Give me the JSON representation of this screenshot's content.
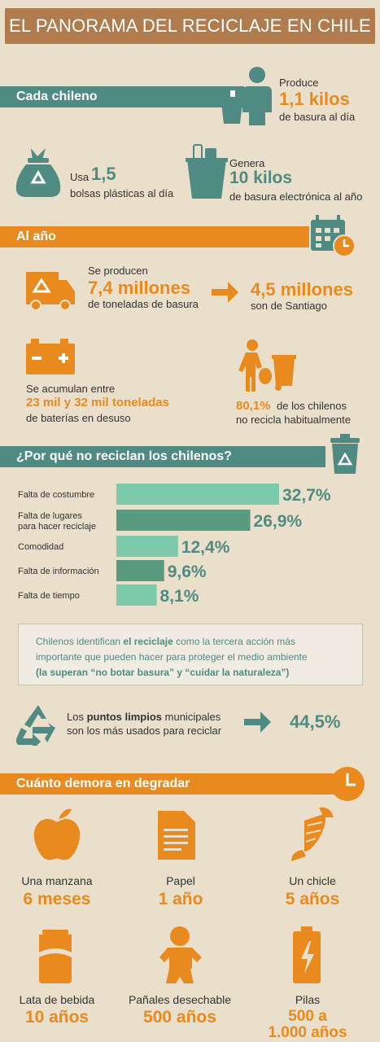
{
  "title": "EL PANORAMA DEL RECICLAJE EN CHILE",
  "section_cada_chileno": {
    "heading": "Cada chileno",
    "produce_label": "Produce",
    "produce_value": "1,1 kilos",
    "produce_desc": "de basura al día",
    "usa_label": "Usa",
    "usa_value": "1,5",
    "usa_desc": "bolsas plásticas al día",
    "genera_label": "Genera",
    "genera_value": "10 kilos",
    "genera_desc": "de basura electrónica al año"
  },
  "section_al_ano": {
    "heading": "Al año",
    "se_producen_label": "Se producen",
    "se_producen_value": "7,4 millones",
    "se_producen_desc": "de toneladas de basura",
    "santiago_value": "4,5 millones",
    "santiago_desc": "son de Santiago",
    "acumulan_label": "Se acumulan entre",
    "acumulan_value": "23 mil y 32 mil toneladas",
    "acumulan_desc": "de baterías en desuso",
    "no_recicla_value": "80,1%",
    "no_recicla_desc1": "de los chilenos",
    "no_recicla_desc2": "no recicla habitualmente"
  },
  "section_por_que": {
    "heading": "¿Por qué no reciclan los chilenos?"
  },
  "chart_data": {
    "type": "bar",
    "categories": [
      "Falta de costumbre",
      "Falta de lugares para hacer reciclaje",
      "Comodidad",
      "Falta de información",
      "Falta de tiempo"
    ],
    "category_lines": [
      [
        "Falta de costumbre"
      ],
      [
        "Falta de lugares",
        "para hacer reciclaje"
      ],
      [
        "Comodidad"
      ],
      [
        "Falta de información"
      ],
      [
        "Falta de tiempo"
      ]
    ],
    "values": [
      32.7,
      26.9,
      12.4,
      9.6,
      8.1
    ],
    "value_labels": [
      "32,7%",
      "26,9%",
      "12,4%",
      "9,6%",
      "8,1%"
    ],
    "colors": [
      "#7ccaaa",
      "#5a9a7e",
      "#7ccaaa",
      "#5a9a7e",
      "#7ccaaa"
    ],
    "orientation": "horizontal"
  },
  "note": {
    "line1_a": "Chilenos identifican ",
    "line1_b": "el reciclaje",
    "line1_c": " como la tercera acción más",
    "line2": "importante que pueden hacer para proteger el medio ambiente",
    "line3": "(la superan “no botar basura” y “cuidar la naturaleza”)"
  },
  "puntos_limpios": {
    "line1_a": "Los ",
    "line1_b": "puntos limpios",
    "line1_c": " municipales",
    "line2": "son los más usados para reciclar",
    "value": "44,5%"
  },
  "section_degradar": {
    "heading": "Cuánto demora en degradar",
    "items": [
      {
        "label": "Una manzana",
        "value": "6 meses"
      },
      {
        "label": "Papel",
        "value": "1 año"
      },
      {
        "label": "Un chicle",
        "value": "5 años"
      },
      {
        "label": "Lata de bebida",
        "value": "10 años"
      },
      {
        "label": "Pañales desechable",
        "value": "500 años"
      },
      {
        "label": "Pilas",
        "value_line1": "500 a",
        "value_line2": "1.000 años"
      }
    ]
  },
  "colors": {
    "background": "#eadfca",
    "teal": "#4f8b82",
    "orange": "#e98a1f",
    "title_band": "#b07c4e"
  }
}
